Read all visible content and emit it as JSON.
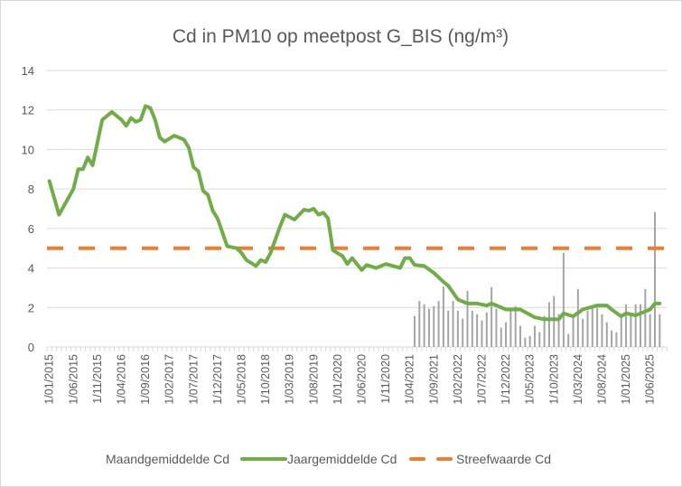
{
  "chart_data": {
    "type": "bar+line",
    "title": "Cd in PM10 op meetpost G_BIS (ng/m³)",
    "xlabel": "",
    "ylabel": "",
    "ylim": [
      0,
      14
    ],
    "y_ticks": [
      "0",
      "2",
      "4",
      "6",
      "8",
      "10",
      "12",
      "14"
    ],
    "grid": true,
    "x_start": "2015-01",
    "x_unit": "month",
    "month_count": 129,
    "x_tick_labels": [
      "1/01/2015",
      "1/06/2015",
      "1/11/2015",
      "1/04/2016",
      "1/09/2016",
      "1/02/2017",
      "1/07/2017",
      "1/12/2017",
      "1/05/2018",
      "1/10/2018",
      "1/03/2019",
      "1/08/2019",
      "1/01/2020",
      "1/06/2020",
      "1/11/2020",
      "1/04/2021",
      "1/09/2021",
      "1/02/2022",
      "1/07/2022",
      "1/12/2022",
      "1/05/2023",
      "1/10/2023",
      "1/03/2024",
      "1/08/2024",
      "1/01/2025",
      "1/06/2025"
    ],
    "x_tick_every_months": 5,
    "legend_position": "bottom",
    "series": [
      {
        "name": "Maandgemiddelde Cd",
        "type": "bar",
        "color": "#a5a5a5",
        "start_month_index": 76,
        "values": [
          1.57,
          2.33,
          2.16,
          1.94,
          2.07,
          2.33,
          3.05,
          1.84,
          2.33,
          1.84,
          1.43,
          2.85,
          1.84,
          1.66,
          1.34,
          1.75,
          3.03,
          1.94,
          0.98,
          1.25,
          1.84,
          2.07,
          1.07,
          0.47,
          0.56,
          1.07,
          0.75,
          1.57,
          2.26,
          2.58,
          1.66,
          4.77,
          0.66,
          1.57,
          2.94,
          1.43,
          1.84,
          1.98,
          1.98,
          1.66,
          1.25,
          0.84,
          0.75,
          1.48,
          2.16,
          1.66,
          2.16,
          2.16,
          2.94,
          1.66,
          6.83,
          1.66
        ]
      },
      {
        "name": "Jaargemiddelde Cd",
        "type": "line",
        "color": "#70ad47",
        "points": [
          [
            0,
            8.4
          ],
          [
            2,
            6.7
          ],
          [
            5,
            8.0
          ],
          [
            6,
            9.0
          ],
          [
            7,
            9.0
          ],
          [
            8,
            9.6
          ],
          [
            9,
            9.2
          ],
          [
            11,
            11.5
          ],
          [
            13,
            11.9
          ],
          [
            15,
            11.5
          ],
          [
            16,
            11.2
          ],
          [
            17,
            11.6
          ],
          [
            18,
            11.4
          ],
          [
            19,
            11.5
          ],
          [
            20,
            12.2
          ],
          [
            21,
            12.1
          ],
          [
            22,
            11.5
          ],
          [
            23,
            10.6
          ],
          [
            24,
            10.4
          ],
          [
            26,
            10.7
          ],
          [
            28,
            10.5
          ],
          [
            29,
            10.1
          ],
          [
            30,
            9.1
          ],
          [
            31,
            8.9
          ],
          [
            32,
            7.9
          ],
          [
            33,
            7.7
          ],
          [
            34,
            6.9
          ],
          [
            35,
            6.5
          ],
          [
            36,
            5.8
          ],
          [
            37,
            5.1
          ],
          [
            39,
            5.0
          ],
          [
            40,
            4.75
          ],
          [
            41,
            4.4
          ],
          [
            43,
            4.1
          ],
          [
            44,
            4.4
          ],
          [
            45,
            4.3
          ],
          [
            46,
            4.75
          ],
          [
            48,
            6.1
          ],
          [
            49,
            6.7
          ],
          [
            51,
            6.45
          ],
          [
            53,
            6.95
          ],
          [
            54,
            6.9
          ],
          [
            55,
            7.0
          ],
          [
            56,
            6.7
          ],
          [
            57,
            6.8
          ],
          [
            58,
            6.5
          ],
          [
            59,
            4.9
          ],
          [
            61,
            4.6
          ],
          [
            62,
            4.2
          ],
          [
            63,
            4.5
          ],
          [
            64,
            4.2
          ],
          [
            65,
            3.9
          ],
          [
            66,
            4.15
          ],
          [
            68,
            4.0
          ],
          [
            70,
            4.2
          ],
          [
            73,
            4.0
          ],
          [
            74,
            4.5
          ],
          [
            75,
            4.5
          ],
          [
            76,
            4.15
          ],
          [
            78,
            4.1
          ],
          [
            80,
            3.75
          ],
          [
            82,
            3.3
          ],
          [
            83,
            3.1
          ],
          [
            85,
            2.4
          ],
          [
            87,
            2.2
          ],
          [
            89,
            2.2
          ],
          [
            91,
            2.1
          ],
          [
            92,
            2.2
          ],
          [
            95,
            1.9
          ],
          [
            98,
            1.9
          ],
          [
            101,
            1.5
          ],
          [
            103,
            1.4
          ],
          [
            106,
            1.4
          ],
          [
            107,
            1.7
          ],
          [
            109,
            1.55
          ],
          [
            111,
            1.9
          ],
          [
            114,
            2.1
          ],
          [
            116,
            2.1
          ],
          [
            117,
            1.9
          ],
          [
            119,
            1.55
          ],
          [
            120,
            1.7
          ],
          [
            122,
            1.6
          ],
          [
            124,
            1.8
          ],
          [
            125,
            1.9
          ],
          [
            126,
            2.2
          ],
          [
            127,
            2.2
          ]
        ]
      },
      {
        "name": "Streefwaarde Cd",
        "type": "line-dashed",
        "color": "#ed7d31",
        "value": 5
      }
    ]
  }
}
